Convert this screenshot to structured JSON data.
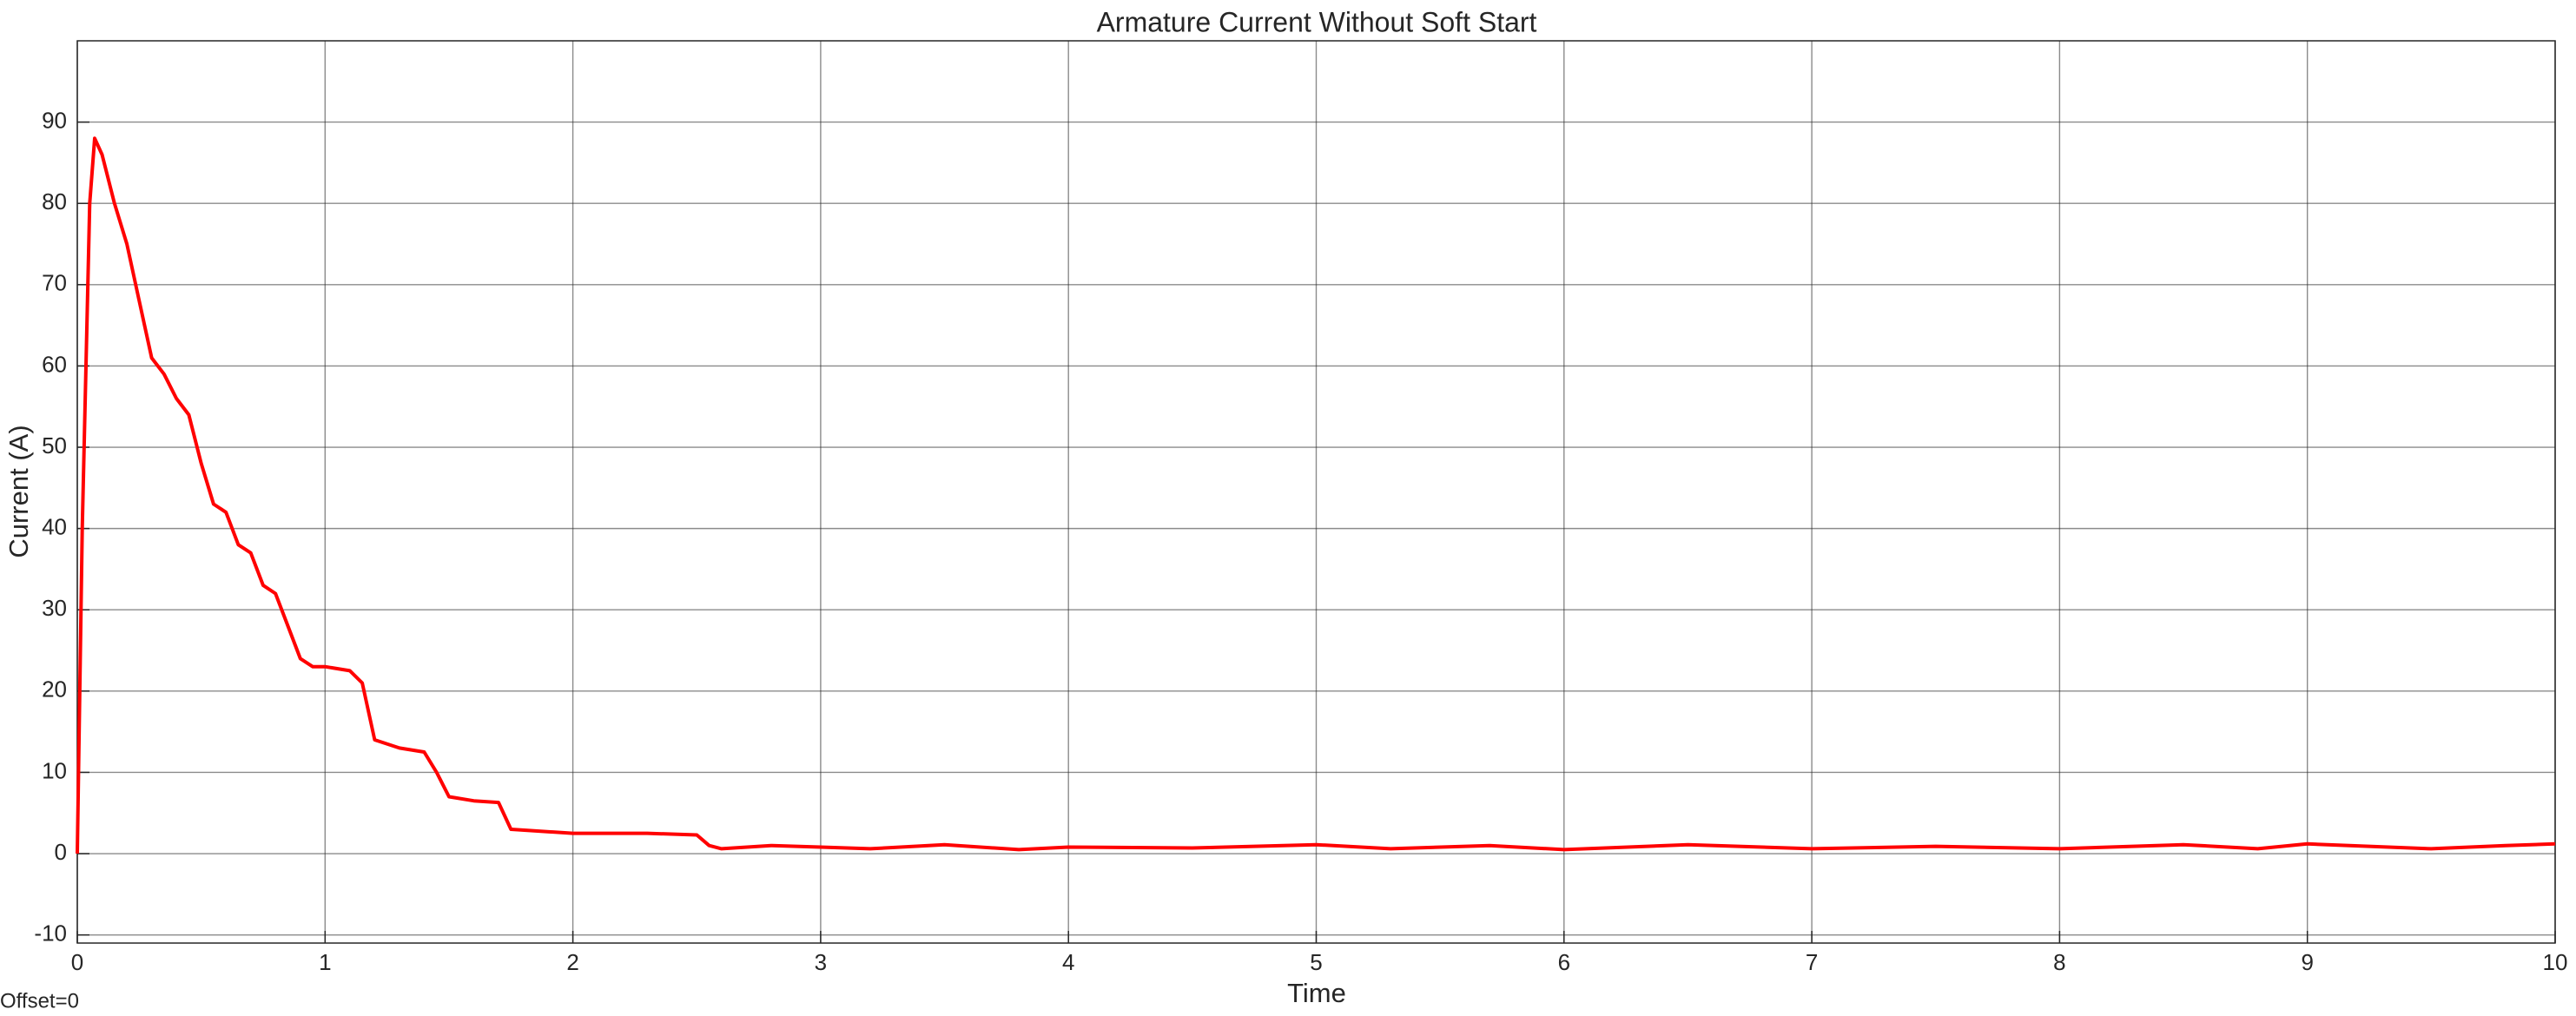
{
  "chart_data": {
    "type": "line",
    "title": "Armature Current Without Soft Start",
    "xlabel": "Time",
    "ylabel": "Current (A)",
    "annotation": "Offset=0",
    "color": "#ff0000",
    "grid": true,
    "xlim": [
      0,
      10
    ],
    "ylim": [
      -11,
      100
    ],
    "xticks": [
      0,
      1,
      2,
      3,
      4,
      5,
      6,
      7,
      8,
      9,
      10
    ],
    "yticks": [
      -10,
      0,
      10,
      20,
      30,
      40,
      50,
      60,
      70,
      80,
      90
    ],
    "x": [
      0,
      0.02,
      0.05,
      0.07,
      0.1,
      0.15,
      0.2,
      0.25,
      0.3,
      0.35,
      0.4,
      0.45,
      0.5,
      0.55,
      0.6,
      0.65,
      0.7,
      0.75,
      0.8,
      0.85,
      0.9,
      0.95,
      1.0,
      1.1,
      1.15,
      1.2,
      1.3,
      1.4,
      1.45,
      1.5,
      1.6,
      1.7,
      1.75,
      2.0,
      2.3,
      2.5,
      2.55,
      2.6,
      2.8,
      3.0,
      3.2,
      3.5,
      3.8,
      4.0,
      4.5,
      5.0,
      5.3,
      5.7,
      6.0,
      6.5,
      7.0,
      7.5,
      8.0,
      8.5,
      8.8,
      9.0,
      9.5,
      9.8,
      10
    ],
    "values": [
      0,
      40,
      80,
      88,
      86,
      80,
      75,
      68,
      61,
      59,
      56,
      54,
      48,
      43,
      42,
      38,
      37,
      33,
      32,
      28,
      24,
      23,
      23,
      22.5,
      21,
      14,
      13,
      12.5,
      10,
      7,
      6.5,
      6.3,
      3,
      2.5,
      2.5,
      2.3,
      1,
      0.6,
      1,
      0.8,
      0.6,
      1.1,
      0.5,
      0.8,
      0.7,
      1.1,
      0.6,
      1.0,
      0.5,
      1.1,
      0.6,
      0.9,
      0.6,
      1.1,
      0.6,
      1.2,
      0.6,
      1.0,
      1.2
    ]
  }
}
